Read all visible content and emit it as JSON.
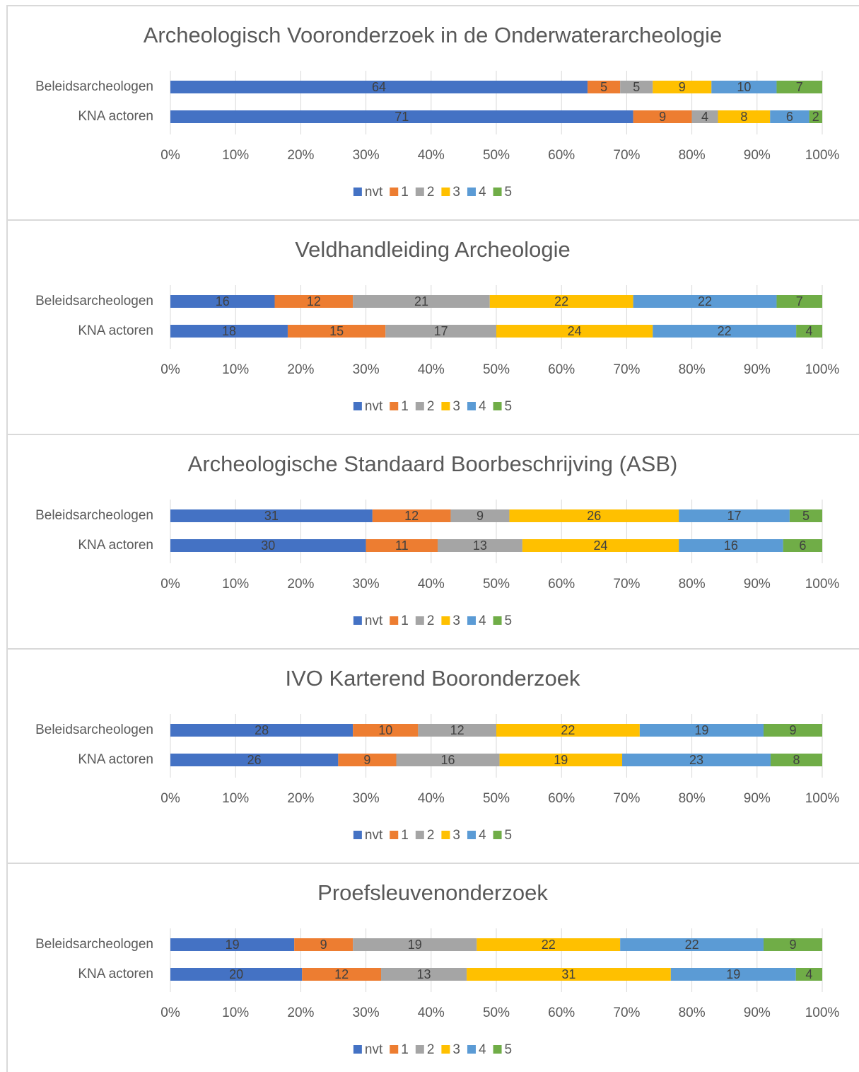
{
  "chart_data": [
    {
      "type": "bar",
      "orientation": "horizontal",
      "stacked": "percent",
      "title": "Archeologisch Vooronderzoek in de Onderwaterarcheologie",
      "categories": [
        "Beleidsarcheologen",
        "KNA actoren"
      ],
      "series": [
        {
          "name": "nvt",
          "color": "#4472c4",
          "values": [
            64,
            71
          ]
        },
        {
          "name": "1",
          "color": "#ed7d31",
          "values": [
            5,
            9
          ]
        },
        {
          "name": "2",
          "color": "#a5a5a5",
          "values": [
            5,
            4
          ]
        },
        {
          "name": "3",
          "color": "#ffc000",
          "values": [
            9,
            8
          ]
        },
        {
          "name": "4",
          "color": "#5b9bd5",
          "values": [
            10,
            6
          ]
        },
        {
          "name": "5",
          "color": "#70ad47",
          "values": [
            7,
            2
          ]
        }
      ],
      "xlim": [
        0,
        100
      ],
      "xticks": [
        {
          "value": 0,
          "label": "0%"
        },
        {
          "value": 10,
          "label": "10%"
        },
        {
          "value": 20,
          "label": "20%"
        },
        {
          "value": 30,
          "label": "30%"
        },
        {
          "value": 40,
          "label": "40%"
        },
        {
          "value": 50,
          "label": "50%"
        },
        {
          "value": 60,
          "label": "60%"
        },
        {
          "value": 70,
          "label": "70%"
        },
        {
          "value": 80,
          "label": "80%"
        },
        {
          "value": 90,
          "label": "90%"
        },
        {
          "value": 100,
          "label": "100%"
        }
      ],
      "grid": true,
      "legend": "bottom"
    },
    {
      "type": "bar",
      "orientation": "horizontal",
      "stacked": "percent",
      "title": "Veldhandleiding Archeologie",
      "categories": [
        "Beleidsarcheologen",
        "KNA actoren"
      ],
      "series": [
        {
          "name": "nvt",
          "color": "#4472c4",
          "values": [
            16,
            18
          ]
        },
        {
          "name": "1",
          "color": "#ed7d31",
          "values": [
            12,
            15
          ]
        },
        {
          "name": "2",
          "color": "#a5a5a5",
          "values": [
            21,
            17
          ]
        },
        {
          "name": "3",
          "color": "#ffc000",
          "values": [
            22,
            24
          ]
        },
        {
          "name": "4",
          "color": "#5b9bd5",
          "values": [
            22,
            22
          ]
        },
        {
          "name": "5",
          "color": "#70ad47",
          "values": [
            7,
            4
          ]
        }
      ],
      "xlim": [
        0,
        100
      ],
      "xticks": [
        {
          "value": 0,
          "label": "0%"
        },
        {
          "value": 10,
          "label": "10%"
        },
        {
          "value": 20,
          "label": "20%"
        },
        {
          "value": 30,
          "label": "30%"
        },
        {
          "value": 40,
          "label": "40%"
        },
        {
          "value": 50,
          "label": "50%"
        },
        {
          "value": 60,
          "label": "60%"
        },
        {
          "value": 70,
          "label": "70%"
        },
        {
          "value": 80,
          "label": "80%"
        },
        {
          "value": 90,
          "label": "90%"
        },
        {
          "value": 100,
          "label": "100%"
        }
      ],
      "grid": true,
      "legend": "bottom"
    },
    {
      "type": "bar",
      "orientation": "horizontal",
      "stacked": "percent",
      "title": "Archeologische Standaard Boorbeschrijving (ASB)",
      "categories": [
        "Beleidsarcheologen",
        "KNA actoren"
      ],
      "series": [
        {
          "name": "nvt",
          "color": "#4472c4",
          "values": [
            31,
            30
          ]
        },
        {
          "name": "1",
          "color": "#ed7d31",
          "values": [
            12,
            11
          ]
        },
        {
          "name": "2",
          "color": "#a5a5a5",
          "values": [
            9,
            13
          ]
        },
        {
          "name": "3",
          "color": "#ffc000",
          "values": [
            26,
            24
          ]
        },
        {
          "name": "4",
          "color": "#5b9bd5",
          "values": [
            17,
            16
          ]
        },
        {
          "name": "5",
          "color": "#70ad47",
          "values": [
            5,
            6
          ]
        }
      ],
      "xlim": [
        0,
        100
      ],
      "xticks": [
        {
          "value": 0,
          "label": "0%"
        },
        {
          "value": 10,
          "label": "10%"
        },
        {
          "value": 20,
          "label": "20%"
        },
        {
          "value": 30,
          "label": "30%"
        },
        {
          "value": 40,
          "label": "40%"
        },
        {
          "value": 50,
          "label": "50%"
        },
        {
          "value": 60,
          "label": "60%"
        },
        {
          "value": 70,
          "label": "70%"
        },
        {
          "value": 80,
          "label": "80%"
        },
        {
          "value": 90,
          "label": "90%"
        },
        {
          "value": 100,
          "label": "100%"
        }
      ],
      "grid": true,
      "legend": "bottom"
    },
    {
      "type": "bar",
      "orientation": "horizontal",
      "stacked": "percent",
      "title": "IVO Karterend Booronderzoek",
      "categories": [
        "Beleidsarcheologen",
        "KNA actoren"
      ],
      "series": [
        {
          "name": "nvt",
          "color": "#4472c4",
          "values": [
            28,
            26
          ]
        },
        {
          "name": "1",
          "color": "#ed7d31",
          "values": [
            10,
            9
          ]
        },
        {
          "name": "2",
          "color": "#a5a5a5",
          "values": [
            12,
            16
          ]
        },
        {
          "name": "3",
          "color": "#ffc000",
          "values": [
            22,
            19
          ]
        },
        {
          "name": "4",
          "color": "#5b9bd5",
          "values": [
            19,
            23
          ]
        },
        {
          "name": "5",
          "color": "#70ad47",
          "values": [
            9,
            8
          ]
        }
      ],
      "xlim": [
        0,
        100
      ],
      "xticks": [
        {
          "value": 0,
          "label": "0%"
        },
        {
          "value": 10,
          "label": "10%"
        },
        {
          "value": 20,
          "label": "20%"
        },
        {
          "value": 30,
          "label": "30%"
        },
        {
          "value": 40,
          "label": "40%"
        },
        {
          "value": 50,
          "label": "50%"
        },
        {
          "value": 60,
          "label": "60%"
        },
        {
          "value": 70,
          "label": "70%"
        },
        {
          "value": 80,
          "label": "80%"
        },
        {
          "value": 90,
          "label": "90%"
        },
        {
          "value": 100,
          "label": "100%"
        }
      ],
      "grid": true,
      "legend": "bottom"
    },
    {
      "type": "bar",
      "orientation": "horizontal",
      "stacked": "percent",
      "title": "Proefsleuvenonderzoek",
      "categories": [
        "Beleidsarcheologen",
        "KNA actoren"
      ],
      "series": [
        {
          "name": "nvt",
          "color": "#4472c4",
          "values": [
            19,
            20
          ]
        },
        {
          "name": "1",
          "color": "#ed7d31",
          "values": [
            9,
            12
          ]
        },
        {
          "name": "2",
          "color": "#a5a5a5",
          "values": [
            19,
            13
          ]
        },
        {
          "name": "3",
          "color": "#ffc000",
          "values": [
            22,
            31
          ]
        },
        {
          "name": "4",
          "color": "#5b9bd5",
          "values": [
            22,
            19
          ]
        },
        {
          "name": "5",
          "color": "#70ad47",
          "values": [
            9,
            4
          ]
        }
      ],
      "xlim": [
        0,
        100
      ],
      "xticks": [
        {
          "value": 0,
          "label": "0%"
        },
        {
          "value": 10,
          "label": "10%"
        },
        {
          "value": 20,
          "label": "20%"
        },
        {
          "value": 30,
          "label": "30%"
        },
        {
          "value": 40,
          "label": "40%"
        },
        {
          "value": 50,
          "label": "50%"
        },
        {
          "value": 60,
          "label": "60%"
        },
        {
          "value": 70,
          "label": "70%"
        },
        {
          "value": 80,
          "label": "80%"
        },
        {
          "value": 90,
          "label": "90%"
        },
        {
          "value": 100,
          "label": "100%"
        }
      ],
      "grid": true,
      "legend": "bottom"
    }
  ]
}
